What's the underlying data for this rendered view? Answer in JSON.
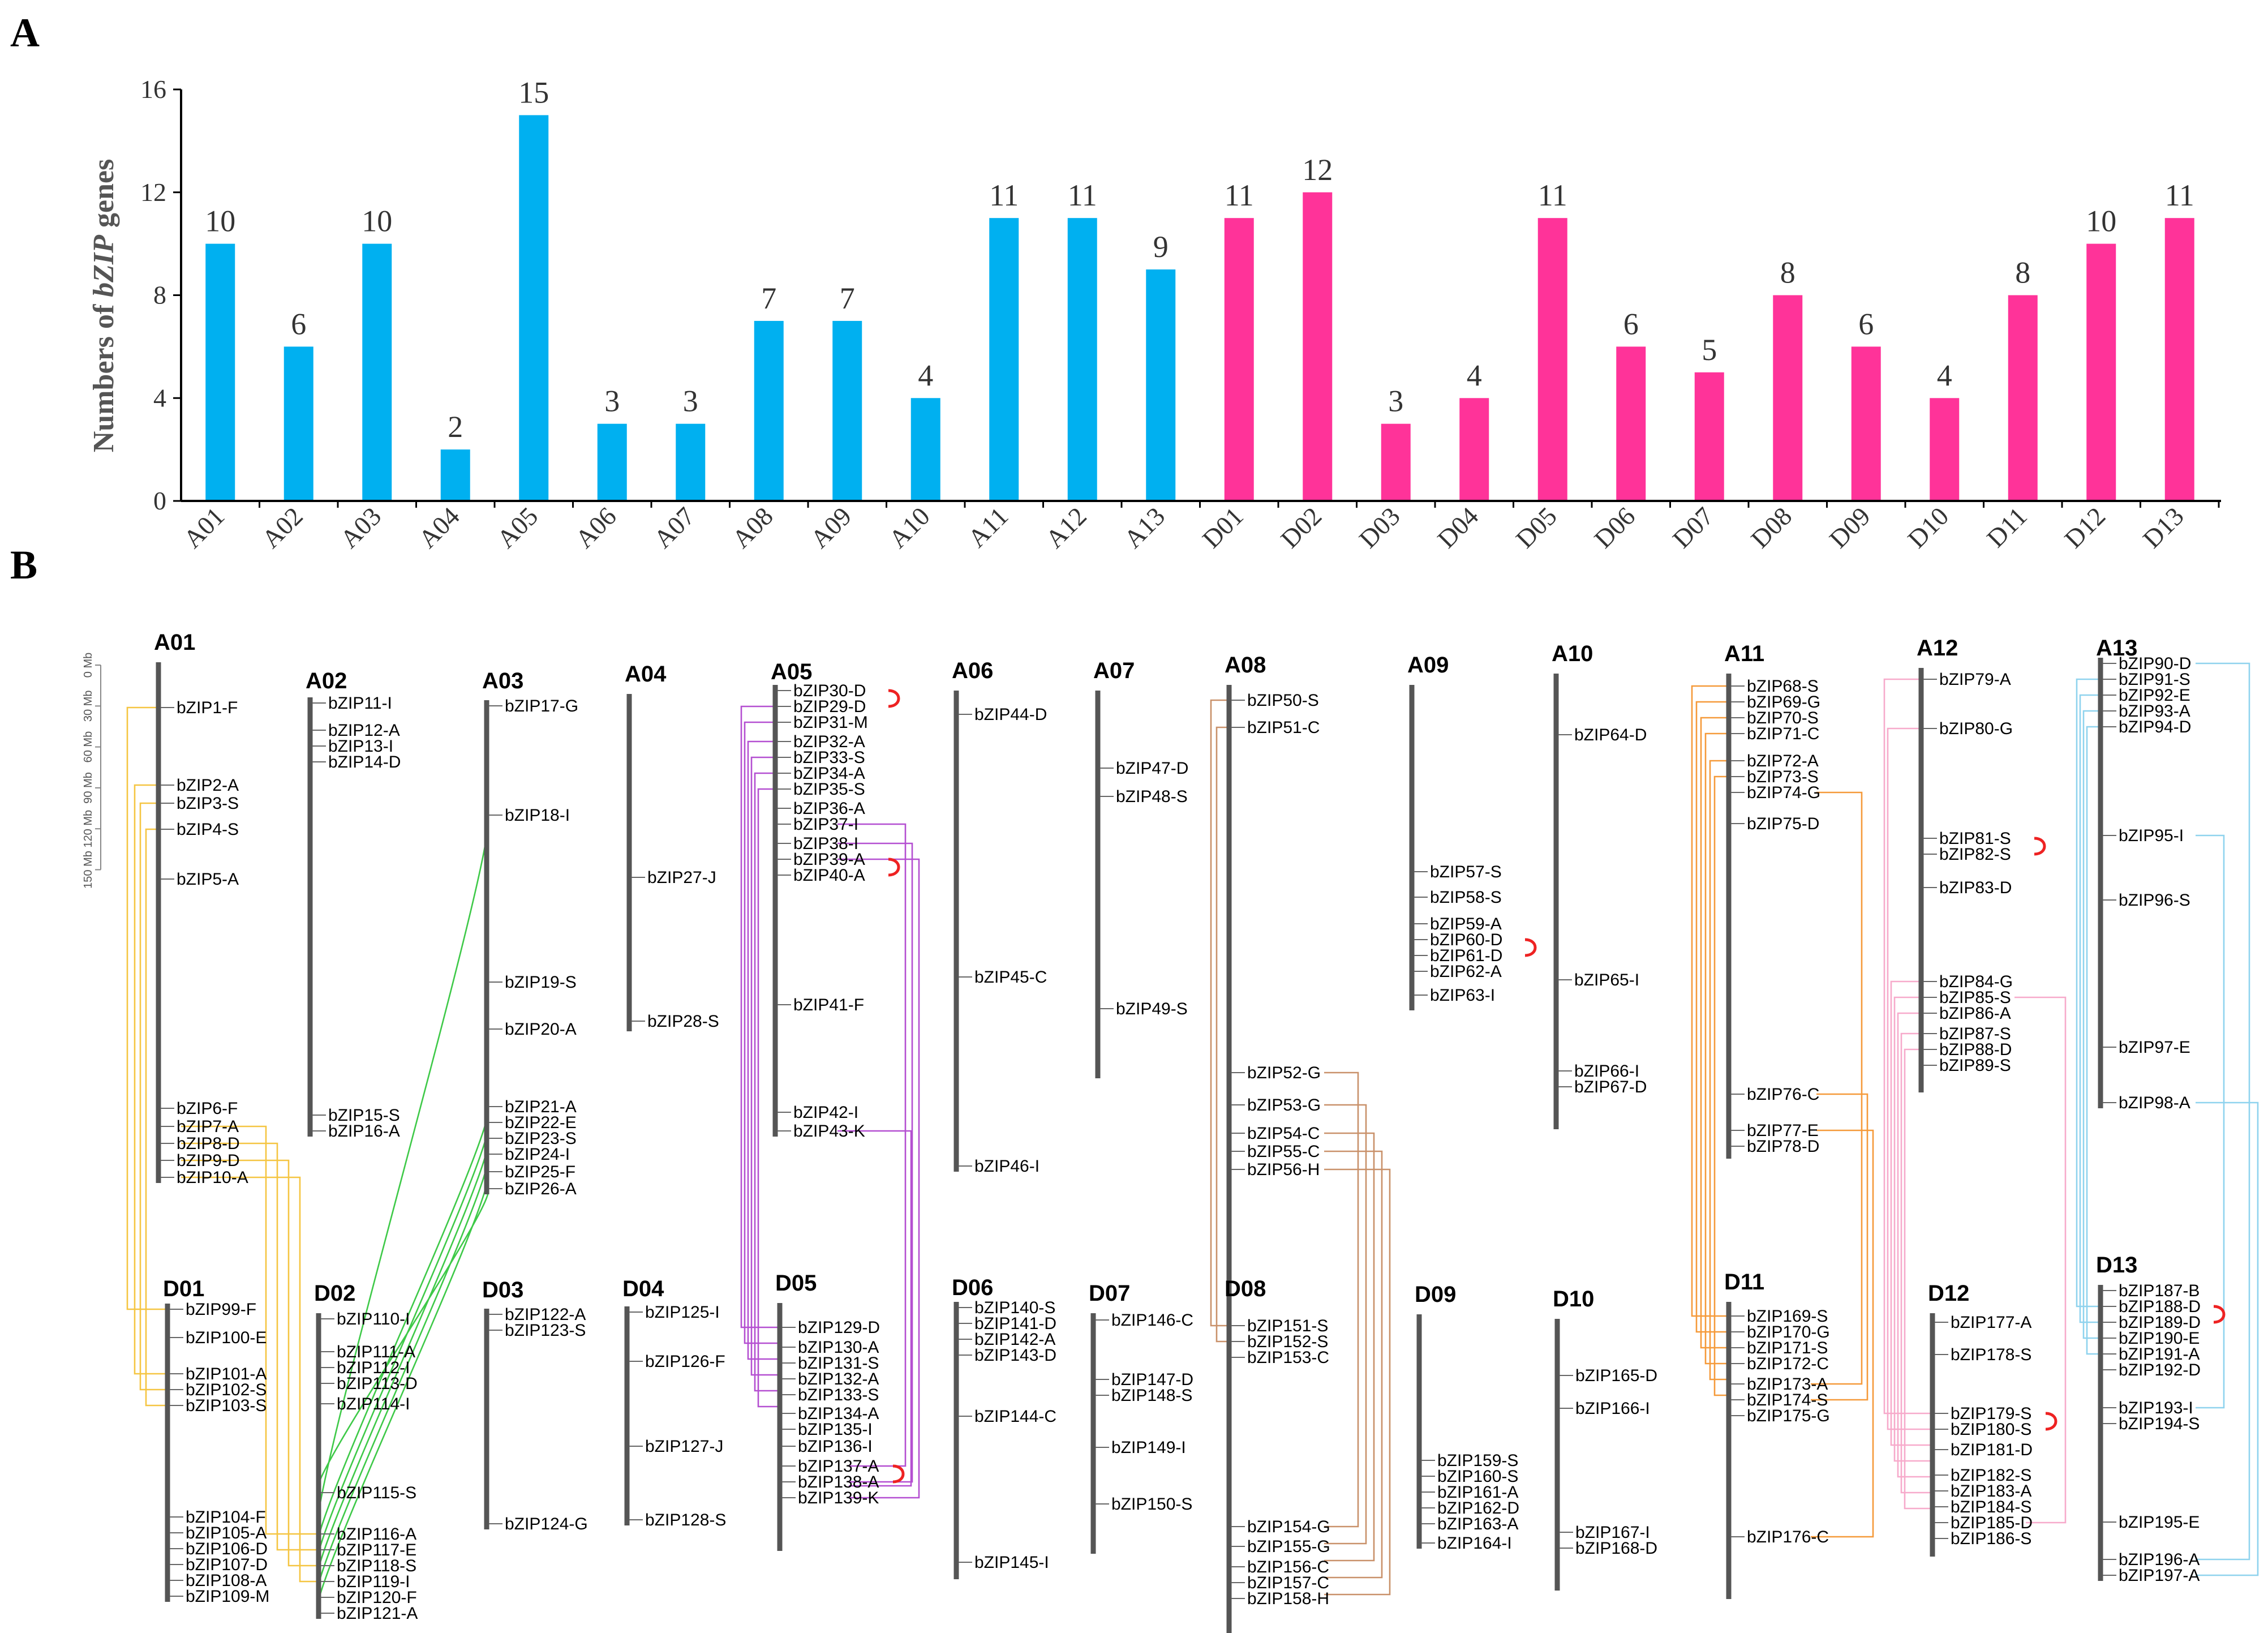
{
  "figure": {
    "label_a": "A",
    "label_b": "B"
  },
  "chart_data": [
    {
      "type": "bar",
      "ylabel_prefix": "Numbers of ",
      "ylabel_italic": "bZIP",
      "ylabel_suffix": " genes",
      "ylim": [
        0,
        16
      ],
      "yticks": [
        0,
        4,
        8,
        12,
        16
      ],
      "categories": [
        "A01",
        "A02",
        "A03",
        "A04",
        "A05",
        "A06",
        "A07",
        "A08",
        "A09",
        "A10",
        "A11",
        "A12",
        "A13",
        "D01",
        "D02",
        "D03",
        "D04",
        "D05",
        "D06",
        "D07",
        "D08",
        "D09",
        "D10",
        "D11",
        "D12",
        "D13"
      ],
      "values": [
        10,
        6,
        10,
        2,
        15,
        3,
        3,
        7,
        7,
        4,
        11,
        11,
        9,
        11,
        12,
        3,
        4,
        11,
        6,
        5,
        8,
        6,
        4,
        8,
        10,
        11
      ],
      "colors": {
        "A": "#00b0f0",
        "D": "#ff3399"
      },
      "data_labels": true,
      "grid": false
    },
    {
      "type": "diagram",
      "scale": {
        "ticks": [
          "0 Mb",
          "30 Mb",
          "60 Mb",
          "90 Mb",
          "120 Mb",
          "150 Mb"
        ]
      },
      "link_colors": {
        "A01": "#f5c542",
        "A03": "#3ec948",
        "A05": "#b44fd1",
        "A08": "#c9916a",
        "A11": "#f59a3a",
        "A12": "#f7aacb",
        "A13": "#8fd3ee",
        "tandem": "#ee2222"
      },
      "chromosomes": [
        {
          "name": "A01",
          "genes": [
            "bZIP1-F",
            "bZIP2-A",
            "bZIP3-S",
            "bZIP4-S",
            "bZIP5-A",
            "bZIP6-F",
            "bZIP7-A",
            "bZIP8-D",
            "bZIP9-D",
            "bZIP10-A"
          ]
        },
        {
          "name": "A02",
          "genes": [
            "bZIP11-I",
            "bZIP12-A",
            "bZIP13-I",
            "bZIP14-D",
            "bZIP15-S",
            "bZIP16-A"
          ]
        },
        {
          "name": "A03",
          "genes": [
            "bZIP17-G",
            "bZIP18-I",
            "bZIP19-S",
            "bZIP20-A",
            "bZIP21-A",
            "bZIP22-E",
            "bZIP23-S",
            "bZIP24-I",
            "bZIP25-F",
            "bZIP26-A"
          ]
        },
        {
          "name": "A04",
          "genes": [
            "bZIP27-J",
            "bZIP28-S"
          ]
        },
        {
          "name": "A05",
          "genes": [
            "bZIP30-D",
            "bZIP29-D",
            "bZIP31-M",
            "bZIP32-A",
            "bZIP33-S",
            "bZIP34-A",
            "bZIP35-S",
            "bZIP36-A",
            "bZIP37-I",
            "bZIP38-I",
            "bZIP39-A",
            "bZIP40-A",
            "bZIP41-F",
            "bZIP42-I",
            "bZIP43-K"
          ]
        },
        {
          "name": "A06",
          "genes": [
            "bZIP44-D",
            "bZIP45-C",
            "bZIP46-I"
          ]
        },
        {
          "name": "A07",
          "genes": [
            "bZIP47-D",
            "bZIP48-S",
            "bZIP49-S"
          ]
        },
        {
          "name": "A08",
          "genes": [
            "bZIP50-S",
            "bZIP51-C",
            "bZIP52-G",
            "bZIP53-G",
            "bZIP54-C",
            "bZIP55-C",
            "bZIP56-H"
          ]
        },
        {
          "name": "A09",
          "genes": [
            "bZIP57-S",
            "bZIP58-S",
            "bZIP59-A",
            "bZIP60-D",
            "bZIP61-D",
            "bZIP62-A",
            "bZIP63-I"
          ]
        },
        {
          "name": "A10",
          "genes": [
            "bZIP64-D",
            "bZIP65-I",
            "bZIP66-I",
            "bZIP67-D"
          ]
        },
        {
          "name": "A11",
          "genes": [
            "bZIP68-S",
            "bZIP69-G",
            "bZIP70-S",
            "bZIP71-C",
            "bZIP72-A",
            "bZIP73-S",
            "bZIP74-G",
            "bZIP75-D",
            "bZIP76-C",
            "bZIP77-E",
            "bZIP78-D"
          ]
        },
        {
          "name": "A12",
          "genes": [
            "bZIP79-A",
            "bZIP80-G",
            "bZIP81-S",
            "bZIP82-S",
            "bZIP83-D",
            "bZIP84-G",
            "bZIP85-S",
            "bZIP86-A",
            "bZIP87-S",
            "bZIP88-D",
            "bZIP89-S"
          ]
        },
        {
          "name": "A13",
          "genes": [
            "bZIP90-D",
            "bZIP91-S",
            "bZIP92-E",
            "bZIP93-A",
            "bZIP94-D",
            "bZIP95-I",
            "bZIP96-S",
            "bZIP97-E",
            "bZIP98-A"
          ]
        },
        {
          "name": "D01",
          "genes": [
            "bZIP99-F",
            "bZIP100-E",
            "bZIP101-A",
            "bZIP102-S",
            "bZIP103-S",
            "bZIP104-F",
            "bZIP105-A",
            "bZIP106-D",
            "bZIP107-D",
            "bZIP108-A",
            "bZIP109-M"
          ]
        },
        {
          "name": "D02",
          "genes": [
            "bZIP110-I",
            "bZIP111-A",
            "bZIP112-I",
            "bZIP113-D",
            "bZIP114-I",
            "bZIP115-S",
            "bZIP116-A",
            "bZIP117-E",
            "bZIP118-S",
            "bZIP119-I",
            "bZIP120-F",
            "bZIP121-A"
          ]
        },
        {
          "name": "D03",
          "genes": [
            "bZIP122-A",
            "bZIP123-S",
            "bZIP124-G"
          ]
        },
        {
          "name": "D04",
          "genes": [
            "bZIP125-I",
            "bZIP126-F",
            "bZIP127-J",
            "bZIP128-S"
          ]
        },
        {
          "name": "D05",
          "genes": [
            "bZIP129-D",
            "bZIP130-A",
            "bZIP131-S",
            "bZIP132-A",
            "bZIP133-S",
            "bZIP134-A",
            "bZIP135-I",
            "bZIP136-I",
            "bZIP137-A",
            "bZIP138-A",
            "bZIP139-K"
          ]
        },
        {
          "name": "D06",
          "genes": [
            "bZIP140-S",
            "bZIP141-D",
            "bZIP142-A",
            "bZIP143-D",
            "bZIP144-C",
            "bZIP145-I"
          ]
        },
        {
          "name": "D07",
          "genes": [
            "bZIP146-C",
            "bZIP147-D",
            "bZIP148-S",
            "bZIP149-I",
            "bZIP150-S"
          ]
        },
        {
          "name": "D08",
          "genes": [
            "bZIP151-S",
            "bZIP152-S",
            "bZIP153-C",
            "bZIP154-G",
            "bZIP155-G",
            "bZIP156-C",
            "bZIP157-C",
            "bZIP158-H"
          ]
        },
        {
          "name": "D09",
          "genes": [
            "bZIP159-S",
            "bZIP160-S",
            "bZIP161-A",
            "bZIP162-D",
            "bZIP163-A",
            "bZIP164-I"
          ]
        },
        {
          "name": "D10",
          "genes": [
            "bZIP165-D",
            "bZIP166-I",
            "bZIP167-I",
            "bZIP168-D"
          ]
        },
        {
          "name": "D11",
          "genes": [
            "bZIP169-S",
            "bZIP170-G",
            "bZIP171-S",
            "bZIP172-C",
            "bZIP173-A",
            "bZIP174-S",
            "bZIP175-G",
            "bZIP176-C"
          ]
        },
        {
          "name": "D12",
          "genes": [
            "bZIP177-A",
            "bZIP178-S",
            "bZIP179-S",
            "bZIP180-S",
            "bZIP181-D",
            "bZIP182-S",
            "bZIP183-A",
            "bZIP184-S",
            "bZIP185-D",
            "bZIP186-S"
          ]
        },
        {
          "name": "D13",
          "genes": [
            "bZIP187-B",
            "bZIP188-D",
            "bZIP189-D",
            "bZIP190-E",
            "bZIP191-A",
            "bZIP192-D",
            "bZIP193-I",
            "bZIP194-S",
            "bZIP195-E",
            "bZIP196-A",
            "bZIP197-A"
          ]
        }
      ]
    }
  ]
}
